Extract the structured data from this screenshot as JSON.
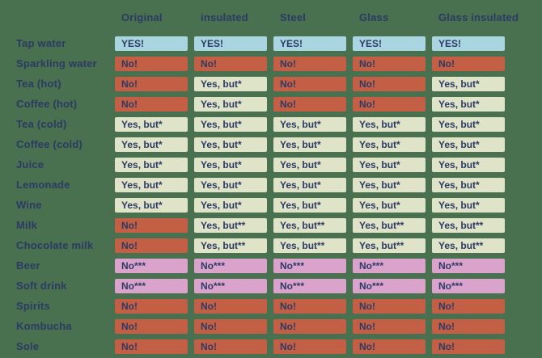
{
  "palette": {
    "background": "#49704F",
    "text_navy": "#2D3A64",
    "cell_yes_blue": "#A8D5DF",
    "cell_no_red": "#C35F44",
    "cell_yesbut_cream": "#DFE3C7",
    "cell_nostar_pink": "#DAA3CC"
  },
  "chart_data": {
    "type": "table",
    "title": "",
    "columns": [
      "Original",
      "insulated",
      "Steel",
      "Glass",
      "Glass insulated"
    ],
    "rows": [
      {
        "label": "Tap water",
        "cells": [
          {
            "text": "YES!",
            "style": "yes"
          },
          {
            "text": "YES!",
            "style": "yes"
          },
          {
            "text": "YES!",
            "style": "yes"
          },
          {
            "text": "YES!",
            "style": "yes"
          },
          {
            "text": "YES!",
            "style": "yes"
          }
        ]
      },
      {
        "label": "Sparkling water",
        "cells": [
          {
            "text": "No!",
            "style": "no"
          },
          {
            "text": "No!",
            "style": "no"
          },
          {
            "text": "No!",
            "style": "no"
          },
          {
            "text": "No!",
            "style": "no"
          },
          {
            "text": "No!",
            "style": "no"
          }
        ]
      },
      {
        "label": "Tea (hot)",
        "cells": [
          {
            "text": "No!",
            "style": "no"
          },
          {
            "text": "Yes, but*",
            "style": "yesbut"
          },
          {
            "text": "No!",
            "style": "no"
          },
          {
            "text": "No!",
            "style": "no"
          },
          {
            "text": "Yes, but*",
            "style": "yesbut"
          }
        ]
      },
      {
        "label": "Coffee (hot)",
        "cells": [
          {
            "text": "No!",
            "style": "no"
          },
          {
            "text": "Yes, but*",
            "style": "yesbut"
          },
          {
            "text": "No!",
            "style": "no"
          },
          {
            "text": "No!",
            "style": "no"
          },
          {
            "text": "Yes, but*",
            "style": "yesbut"
          }
        ]
      },
      {
        "label": "Tea (cold)",
        "cells": [
          {
            "text": "Yes, but*",
            "style": "yesbut"
          },
          {
            "text": "Yes, but*",
            "style": "yesbut"
          },
          {
            "text": "Yes, but*",
            "style": "yesbut"
          },
          {
            "text": "Yes, but*",
            "style": "yesbut"
          },
          {
            "text": "Yes, but*",
            "style": "yesbut"
          }
        ]
      },
      {
        "label": "Coffee (cold)",
        "cells": [
          {
            "text": "Yes, but*",
            "style": "yesbut"
          },
          {
            "text": "Yes, but*",
            "style": "yesbut"
          },
          {
            "text": "Yes, but*",
            "style": "yesbut"
          },
          {
            "text": "Yes, but*",
            "style": "yesbut"
          },
          {
            "text": "Yes, but*",
            "style": "yesbut"
          }
        ]
      },
      {
        "label": "Juice",
        "cells": [
          {
            "text": "Yes, but*",
            "style": "yesbut"
          },
          {
            "text": "Yes, but*",
            "style": "yesbut"
          },
          {
            "text": "Yes, but*",
            "style": "yesbut"
          },
          {
            "text": "Yes, but*",
            "style": "yesbut"
          },
          {
            "text": "Yes, but*",
            "style": "yesbut"
          }
        ]
      },
      {
        "label": "Lemonade",
        "cells": [
          {
            "text": "Yes, but*",
            "style": "yesbut"
          },
          {
            "text": "Yes, but*",
            "style": "yesbut"
          },
          {
            "text": "Yes, but*",
            "style": "yesbut"
          },
          {
            "text": "Yes, but*",
            "style": "yesbut"
          },
          {
            "text": "Yes, but*",
            "style": "yesbut"
          }
        ]
      },
      {
        "label": "Wine",
        "cells": [
          {
            "text": "Yes, but*",
            "style": "yesbut"
          },
          {
            "text": "Yes, but*",
            "style": "yesbut"
          },
          {
            "text": "Yes, but*",
            "style": "yesbut"
          },
          {
            "text": "Yes, but*",
            "style": "yesbut"
          },
          {
            "text": "Yes, but*",
            "style": "yesbut"
          }
        ]
      },
      {
        "label": "Milk",
        "cells": [
          {
            "text": "No!",
            "style": "no"
          },
          {
            "text": "Yes, but**",
            "style": "yesbut"
          },
          {
            "text": "Yes, but**",
            "style": "yesbut"
          },
          {
            "text": "Yes, but**",
            "style": "yesbut"
          },
          {
            "text": "Yes, but**",
            "style": "yesbut"
          }
        ]
      },
      {
        "label": "Chocolate milk",
        "cells": [
          {
            "text": "No!",
            "style": "no"
          },
          {
            "text": "Yes, but**",
            "style": "yesbut"
          },
          {
            "text": "Yes, but**",
            "style": "yesbut"
          },
          {
            "text": "Yes, but**",
            "style": "yesbut"
          },
          {
            "text": "Yes, but**",
            "style": "yesbut"
          }
        ]
      },
      {
        "label": "Beer",
        "cells": [
          {
            "text": "No***",
            "style": "nostar"
          },
          {
            "text": "No***",
            "style": "nostar"
          },
          {
            "text": "No***",
            "style": "nostar"
          },
          {
            "text": "No***",
            "style": "nostar"
          },
          {
            "text": "No***",
            "style": "nostar"
          }
        ]
      },
      {
        "label": "Soft drink",
        "cells": [
          {
            "text": "No***",
            "style": "nostar"
          },
          {
            "text": "No***",
            "style": "nostar"
          },
          {
            "text": "No***",
            "style": "nostar"
          },
          {
            "text": "No***",
            "style": "nostar"
          },
          {
            "text": "No***",
            "style": "nostar"
          }
        ]
      },
      {
        "label": "Spirits",
        "cells": [
          {
            "text": "No!",
            "style": "no"
          },
          {
            "text": "No!",
            "style": "no"
          },
          {
            "text": "No!",
            "style": "no"
          },
          {
            "text": "No!",
            "style": "no"
          },
          {
            "text": "No!",
            "style": "no"
          }
        ]
      },
      {
        "label": "Kombucha",
        "cells": [
          {
            "text": "No!",
            "style": "no"
          },
          {
            "text": "No!",
            "style": "no"
          },
          {
            "text": "No!",
            "style": "no"
          },
          {
            "text": "No!",
            "style": "no"
          },
          {
            "text": "No!",
            "style": "no"
          }
        ]
      },
      {
        "label": "Sole",
        "cells": [
          {
            "text": "No!",
            "style": "no"
          },
          {
            "text": "No!",
            "style": "no"
          },
          {
            "text": "No!",
            "style": "no"
          },
          {
            "text": "No!",
            "style": "no"
          },
          {
            "text": "No!",
            "style": "no"
          }
        ]
      }
    ]
  }
}
